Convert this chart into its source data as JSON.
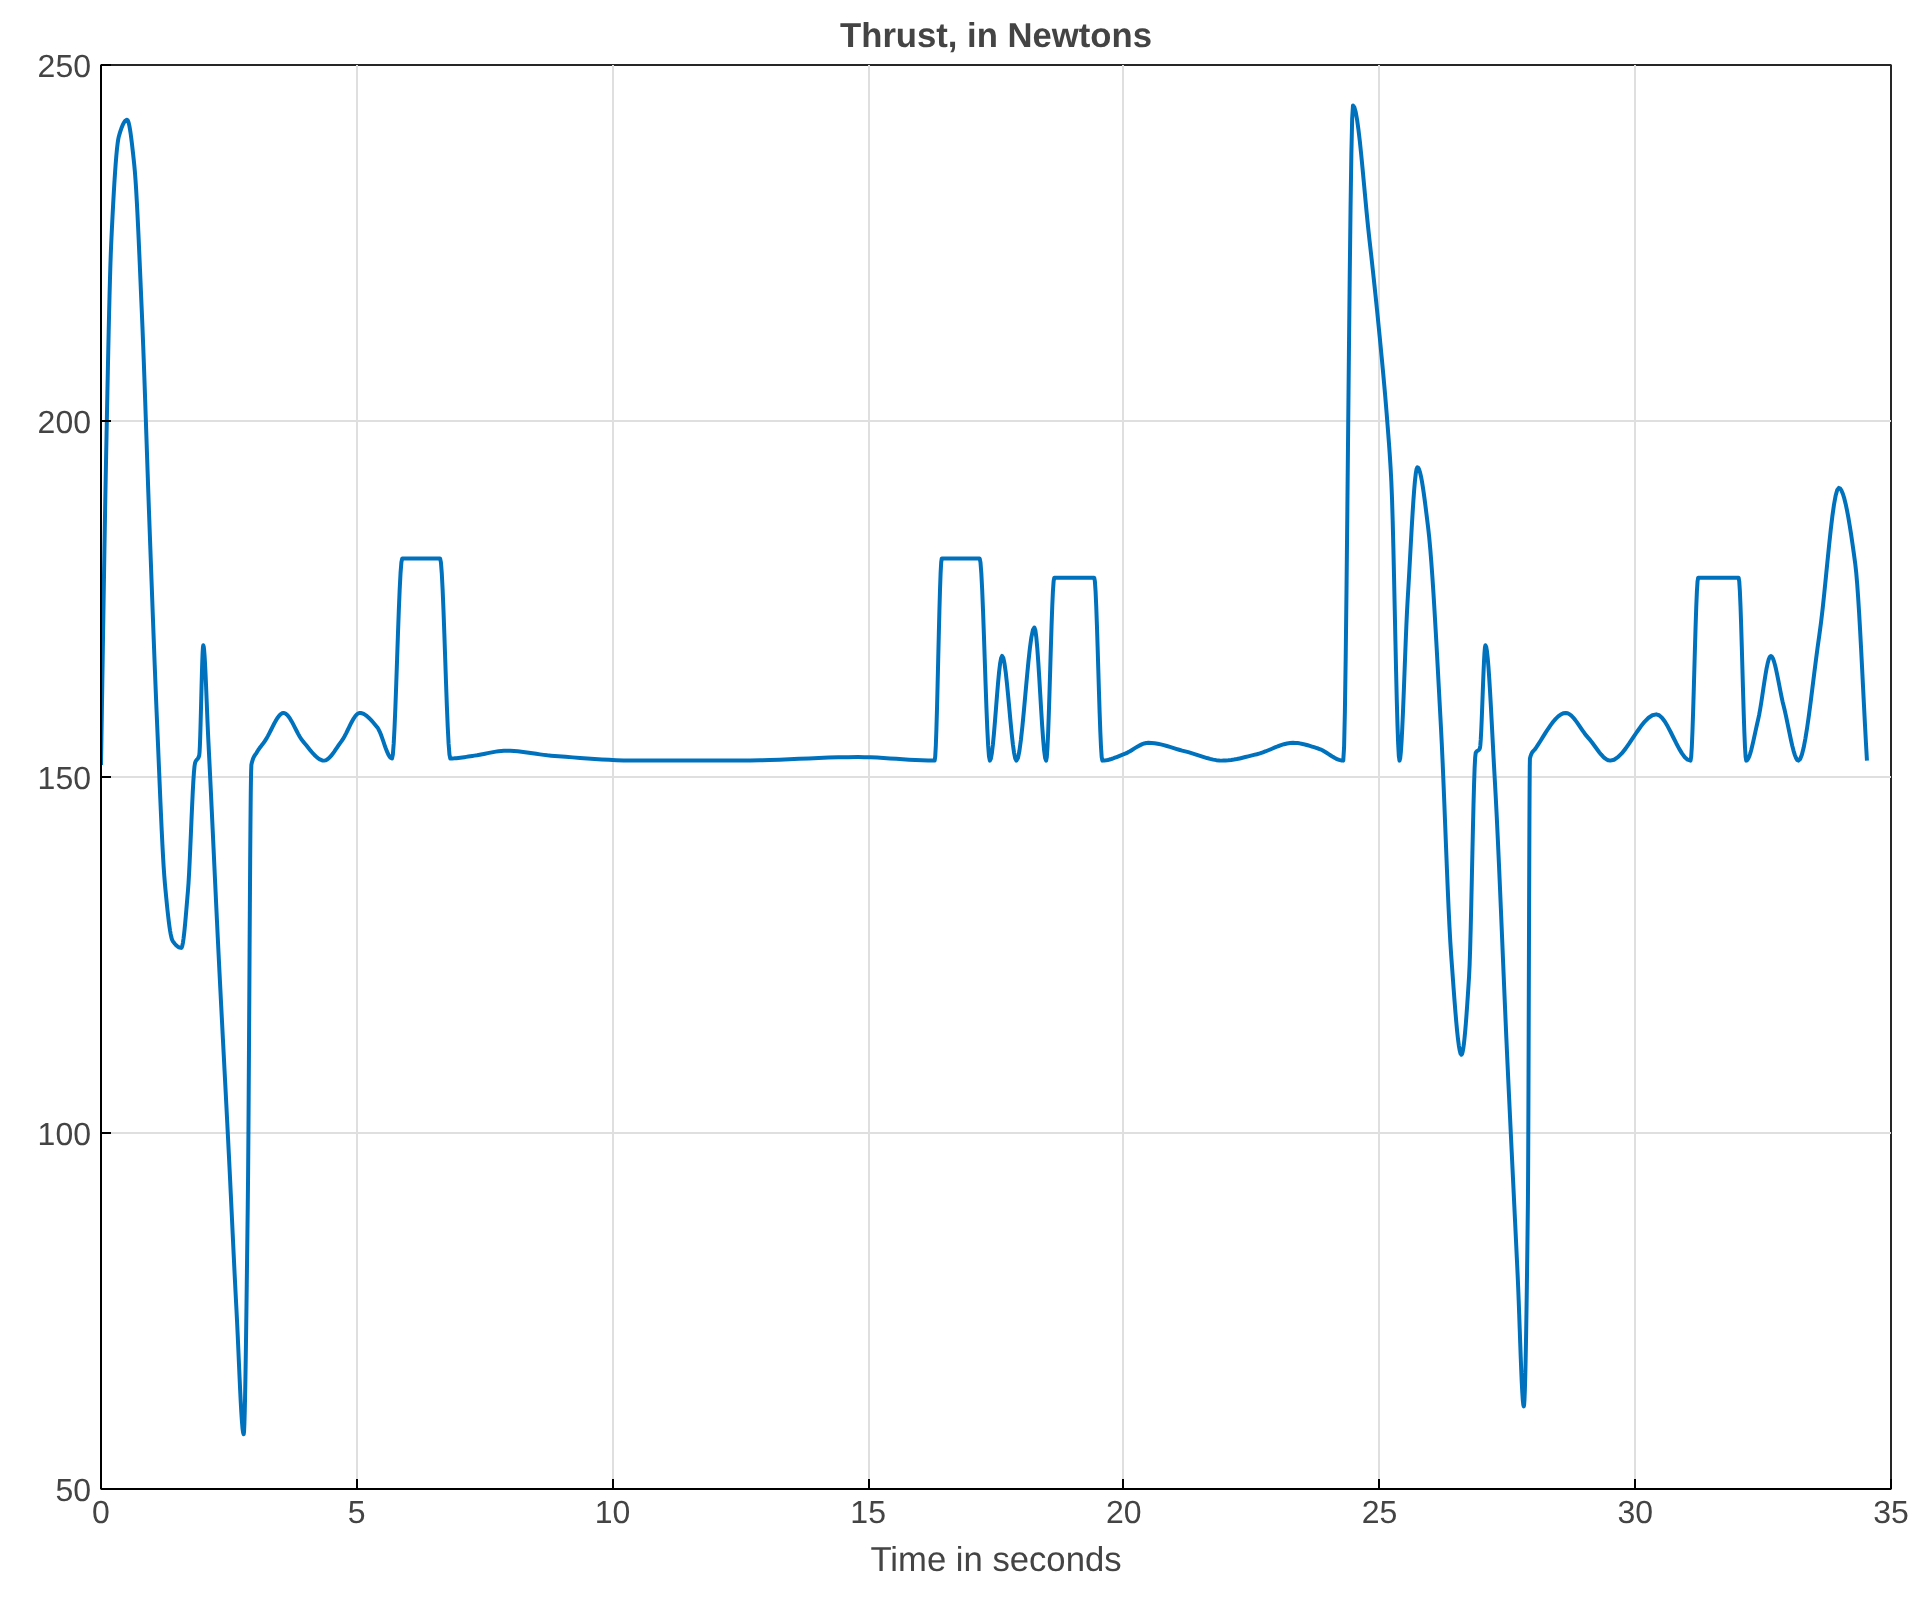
{
  "chart_data": {
    "type": "line",
    "title": "Thrust, in Newtons",
    "xlabel": "Time in seconds",
    "xlim": [
      0,
      35
    ],
    "ylim": [
      50,
      250
    ],
    "xticks": [
      0,
      5,
      10,
      15,
      20,
      25,
      30,
      35
    ],
    "yticks": [
      50,
      100,
      150,
      200,
      250
    ],
    "grid": true,
    "marker": "none",
    "line_style": "solid",
    "series": [
      {
        "color": "#0072bd",
        "x": [
          0,
          0.1,
          0.2,
          0.35,
          0.51,
          0.65,
          0.8,
          0.95,
          1.1,
          1.25,
          1.4,
          1.57,
          1.7,
          1.84,
          1.92,
          2.0,
          2.1,
          2.3,
          2.5,
          2.65,
          2.79,
          2.87,
          2.94,
          3.05,
          3.2,
          3.57,
          3.95,
          4.36,
          4.7,
          5.06,
          5.4,
          5.69,
          5.89,
          6.63,
          6.83,
          7.3,
          7.93,
          8.8,
          10.5,
          12.5,
          14.8,
          16.3,
          16.44,
          17.18,
          17.38,
          17.62,
          17.9,
          18.25,
          18.48,
          18.64,
          19.42,
          19.58,
          20.0,
          20.48,
          21.2,
          21.93,
          22.6,
          23.31,
          23.8,
          24.29,
          24.48,
          24.8,
          25.0,
          25.15,
          25.23,
          25.39,
          25.55,
          25.74,
          25.95,
          26.2,
          26.4,
          26.6,
          26.75,
          26.88,
          26.96,
          27.07,
          27.25,
          27.5,
          27.7,
          27.82,
          27.9,
          27.94,
          28.05,
          28.64,
          29.08,
          29.51,
          30.41,
          31.08,
          31.23,
          32.02,
          32.17,
          32.4,
          32.65,
          32.9,
          33.19,
          33.6,
          33.98,
          34.3,
          34.53
        ],
        "values": [
          151.7,
          195,
          225,
          240,
          242.3,
          236,
          215,
          185,
          157,
          135,
          127,
          126,
          134,
          152,
          153,
          168.5,
          155,
          125,
          97,
          75,
          57.7,
          90,
          151.7,
          153.5,
          155,
          159,
          155,
          152.3,
          155,
          159,
          157,
          152.6,
          180.7,
          180.7,
          152.6,
          153,
          153.7,
          153,
          152.3,
          152.3,
          152.8,
          152.3,
          180.7,
          180.7,
          152.3,
          167,
          152.3,
          171,
          152.3,
          178,
          178,
          152.3,
          153.2,
          154.8,
          153.6,
          152.3,
          153.2,
          154.8,
          154,
          152.3,
          244.3,
          225.6,
          212,
          200,
          191.5,
          152.3,
          175,
          193.5,
          185,
          157,
          125,
          111,
          122,
          153.4,
          154,
          168.5,
          150,
          110,
          80,
          61.6,
          90,
          152.6,
          154,
          159,
          155.5,
          152.3,
          158.8,
          152.3,
          178,
          178,
          152.3,
          158,
          167,
          160,
          152.3,
          170,
          190.6,
          180,
          152.3
        ]
      }
    ]
  }
}
